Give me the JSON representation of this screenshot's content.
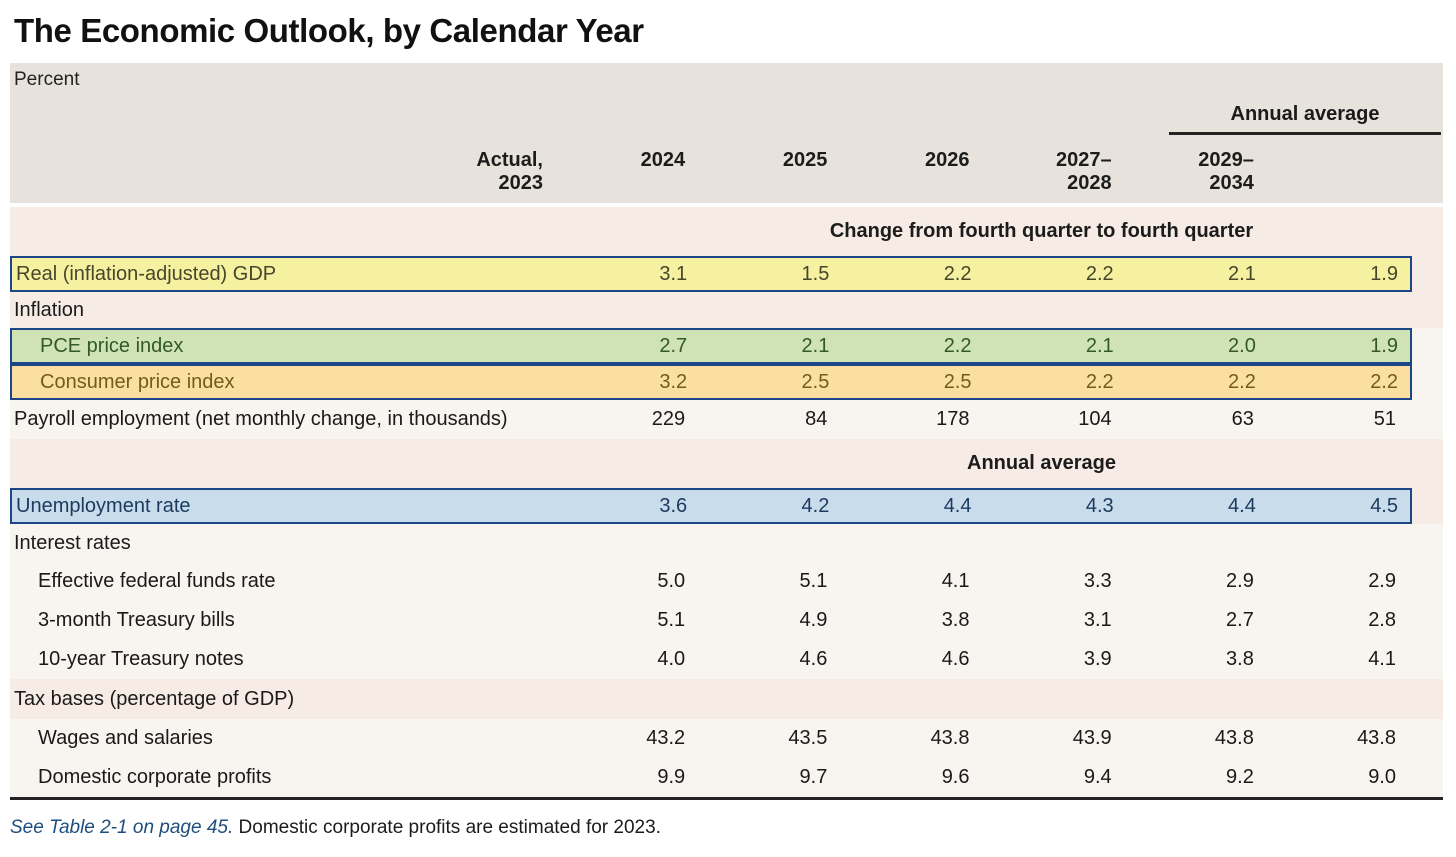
{
  "title": "The Economic Outlook, by Calendar Year",
  "unit_label": "Percent",
  "header": {
    "spanner": "Annual average",
    "columns": [
      "Actual,\n2023",
      "2024",
      "2025",
      "2026",
      "2027–\n2028",
      "2029–\n2034"
    ]
  },
  "table": {
    "rows": [
      {
        "kind": "band",
        "label": "Change from fourth quarter to fourth quarter"
      },
      {
        "kind": "highlight",
        "style": "yellow",
        "outer": "band_pink",
        "indent": 0,
        "label": "Real (inflation-adjusted) GDP",
        "values": [
          "3.1",
          "1.5",
          "2.2",
          "2.2",
          "2.1",
          "1.9"
        ]
      },
      {
        "kind": "section",
        "label": "Inflation"
      },
      {
        "kind": "highlight",
        "style": "green",
        "outer": "row_cream",
        "indent": 1,
        "label": "PCE price index",
        "values": [
          "2.7",
          "2.1",
          "2.2",
          "2.1",
          "2.0",
          "1.9"
        ]
      },
      {
        "kind": "highlight",
        "style": "orange",
        "outer": "row_cream",
        "indent": 1,
        "label": "Consumer price index",
        "values": [
          "3.2",
          "2.5",
          "2.5",
          "2.2",
          "2.2",
          "2.2"
        ]
      },
      {
        "kind": "data",
        "indent": 0,
        "label": "Payroll employment (net monthly change, in thousands)",
        "values": [
          "229",
          "84",
          "178",
          "104",
          "63",
          "51"
        ]
      },
      {
        "kind": "band",
        "label": "Annual average"
      },
      {
        "kind": "highlight",
        "style": "blue",
        "outer": "band_pink",
        "indent": 0,
        "label": "Unemployment rate",
        "values": [
          "3.6",
          "4.2",
          "4.4",
          "4.3",
          "4.4",
          "4.5"
        ]
      },
      {
        "kind": "section-plain",
        "label": "Interest rates"
      },
      {
        "kind": "data",
        "indent": 1,
        "label": "Effective federal funds rate",
        "values": [
          "5.0",
          "5.1",
          "4.1",
          "3.3",
          "2.9",
          "2.9"
        ]
      },
      {
        "kind": "data",
        "indent": 1,
        "label": "3-month Treasury bills",
        "values": [
          "5.1",
          "4.9",
          "3.8",
          "3.1",
          "2.7",
          "2.8"
        ]
      },
      {
        "kind": "data",
        "indent": 1,
        "label": "10-year Treasury notes",
        "values": [
          "4.0",
          "4.6",
          "4.6",
          "3.9",
          "3.8",
          "4.1"
        ]
      },
      {
        "kind": "section",
        "tall": true,
        "label": "Tax bases (percentage of GDP)"
      },
      {
        "kind": "data",
        "indent": 1,
        "label": "Wages and salaries",
        "values": [
          "43.2",
          "43.5",
          "43.8",
          "43.9",
          "43.8",
          "43.8"
        ]
      },
      {
        "kind": "data",
        "indent": 1,
        "label": "Domestic corporate profits",
        "values": [
          "9.9",
          "9.7",
          "9.6",
          "9.4",
          "9.2",
          "9.0"
        ]
      }
    ]
  },
  "footnote": {
    "link": "See Table 2-1 on page 45.",
    "text": " Domestic corporate profits are estimated for 2023."
  },
  "colors": {
    "header_bg": "#e7e3dc",
    "band_pink": "#f7ebe5",
    "row_cream": "#f8f4ef",
    "highlight_yellow": "#f6f0a1",
    "yellow_text": "#45472a",
    "highlight_green": "#cfe3b5",
    "green_text": "#33582c",
    "highlight_orange": "#fbdfa2",
    "orange_text": "#6f5d1e",
    "highlight_blue": "#c8dcec",
    "blue_text": "#1c3a5e",
    "border_blue": "#1d4687",
    "link_blue": "#1d4e7f",
    "rule_dark": "#232323"
  }
}
